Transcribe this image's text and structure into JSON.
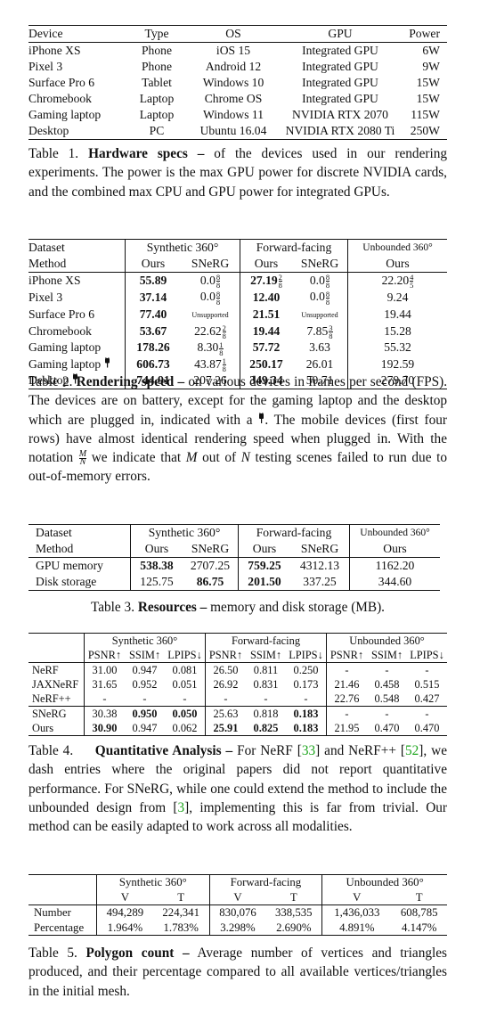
{
  "table1": {
    "headers": [
      "Device",
      "Type",
      "OS",
      "GPU",
      "Power"
    ],
    "rows": [
      [
        "iPhone XS",
        "Phone",
        "iOS 15",
        "Integrated GPU",
        "6W"
      ],
      [
        "Pixel 3",
        "Phone",
        "Android 12",
        "Integrated GPU",
        "9W"
      ],
      [
        "Surface Pro 6",
        "Tablet",
        "Windows 10",
        "Integrated GPU",
        "15W"
      ],
      [
        "Chromebook",
        "Laptop",
        "Chrome OS",
        "Integrated GPU",
        "15W"
      ],
      [
        "Gaming laptop",
        "Laptop",
        "Windows 11",
        "NVIDIA RTX 2070",
        "115W"
      ],
      [
        "Desktop",
        "PC",
        "Ubuntu 16.04",
        "NVIDIA RTX 2080 Ti",
        "250W"
      ]
    ],
    "caption_label": "Table 1.",
    "caption_title": "Hardware specs –",
    "caption_text": "of the devices used in our rendering experiments. The power is the max GPU power for discrete NVIDIA cards, and the combined max CPU and GPU power for integrated GPUs."
  },
  "table2": {
    "h_dataset": "Dataset",
    "h_method": "Method",
    "groups": [
      "Synthetic 360°",
      "Forward-facing",
      "Unbounded 360°"
    ],
    "methods": [
      "Ours",
      "SNeRG",
      "Ours",
      "SNeRG",
      "Ours"
    ],
    "rows": [
      {
        "device": "iPhone XS",
        "plug": "",
        "v": [
          "55.89",
          "0.0",
          "27.19",
          "0.0",
          "22.20"
        ],
        "f": [
          null,
          [
            "8",
            "8"
          ],
          [
            "2",
            "8"
          ],
          [
            "8",
            "8"
          ],
          [
            "4",
            "5"
          ]
        ]
      },
      {
        "device": "Pixel 3",
        "plug": "",
        "v": [
          "37.14",
          "0.0",
          "12.40",
          "0.0",
          "9.24"
        ],
        "f": [
          null,
          [
            "8",
            "8"
          ],
          null,
          [
            "8",
            "8"
          ],
          null
        ]
      },
      {
        "device": "Surface Pro 6",
        "plug": "",
        "v": [
          "77.40",
          "Unsupported",
          "21.51",
          "Unsupported",
          "19.44"
        ],
        "f": [
          null,
          null,
          null,
          null,
          null
        ]
      },
      {
        "device": "Chromebook",
        "plug": "",
        "v": [
          "53.67",
          "22.62",
          "19.44",
          "7.85",
          "15.28"
        ],
        "f": [
          null,
          [
            "2",
            "8"
          ],
          null,
          [
            "3",
            "8"
          ],
          null
        ]
      },
      {
        "device": "Gaming laptop",
        "plug": "",
        "v": [
          "178.26",
          "8.30",
          "57.72",
          "3.63",
          "55.32"
        ],
        "f": [
          null,
          [
            "1",
            "8"
          ],
          null,
          null,
          null
        ]
      },
      {
        "device": "Gaming laptop",
        "plug": "⚲",
        "v": [
          "606.73",
          "43.87",
          "250.17",
          "26.01",
          "192.59"
        ],
        "f": [
          null,
          [
            "1",
            "8"
          ],
          null,
          null,
          null
        ]
      },
      {
        "device": "Desktop",
        "plug": "⚲",
        "v": [
          "744.91",
          "207.26",
          "349.34",
          "50.71",
          "279.70"
        ],
        "f": [
          null,
          null,
          null,
          null,
          null
        ]
      }
    ],
    "caption_label": "Table 2.",
    "caption_title": "Rendering speed –",
    "caption_text_1": "on various devices in frames per second (FPS). The devices are on battery, except for the gaming laptop and the desktop which are plugged in, indicated with a",
    "caption_text_2": ". The mobile devices (first four rows) have almost identical rendering speed when plugged in. With the notation",
    "caption_text_3": "we indicate that",
    "caption_text_4": "out of",
    "caption_text_5": "testing scenes failed to run due to out-of-memory errors.",
    "M": "M",
    "N": "N"
  },
  "table3": {
    "h_dataset": "Dataset",
    "h_method": "Method",
    "groups": [
      "Synthetic 360°",
      "Forward-facing",
      "Unbounded 360°"
    ],
    "methods": [
      "Ours",
      "SNeRG",
      "Ours",
      "SNeRG",
      "Ours"
    ],
    "rows": [
      [
        "GPU memory",
        "538.38",
        "2707.25",
        "759.25",
        "4312.13",
        "1162.20"
      ],
      [
        "Disk storage",
        "125.75",
        "86.75",
        "201.50",
        "337.25",
        "344.60"
      ]
    ],
    "caption_label": "Table 3.",
    "caption_title": "Resources –",
    "caption_text": "memory and disk storage (MB)."
  },
  "table4": {
    "groups": [
      "Synthetic 360°",
      "Forward-facing",
      "Unbounded 360°"
    ],
    "metrics": [
      "PSNR↑",
      "SSIM↑",
      "LPIPS↓",
      "PSNR↑",
      "SSIM↑",
      "LPIPS↓",
      "PSNR↑",
      "SSIM↑",
      "LPIPS↓"
    ],
    "rows": [
      [
        "NeRF",
        "31.00",
        "0.947",
        "0.081",
        "26.50",
        "0.811",
        "0.250",
        "-",
        "-",
        "-"
      ],
      [
        "JAXNeRF",
        "31.65",
        "0.952",
        "0.051",
        "26.92",
        "0.831",
        "0.173",
        "21.46",
        "0.458",
        "0.515"
      ],
      [
        "NeRF++",
        "-",
        "-",
        "-",
        "-",
        "-",
        "-",
        "22.76",
        "0.548",
        "0.427"
      ],
      [
        "SNeRG",
        "30.38",
        "0.950",
        "0.050",
        "25.63",
        "0.818",
        "0.183",
        "-",
        "-",
        "-"
      ],
      [
        "Ours",
        "30.90",
        "0.947",
        "0.062",
        "25.91",
        "0.825",
        "0.183",
        "21.95",
        "0.470",
        "0.470"
      ]
    ],
    "caption_label": "Table 4.",
    "caption_title": "Quantitative Analysis –",
    "caption_text_1": "For NeRF [",
    "ref1": "33",
    "caption_text_2": "] and NeRF++ [",
    "ref2": "52",
    "caption_text_3": "], we dash entries where the original papers did not report quantitative performance. For SNeRG, while one could extend the method to include the unbounded design from [",
    "ref3": "3",
    "caption_text_4": "], implementing this is far from trivial. Our method can be easily adapted to work across all modalities."
  },
  "table5": {
    "groups": [
      "Synthetic 360°",
      "Forward-facing",
      "Unbounded 360°"
    ],
    "cols": [
      "V",
      "T",
      "V",
      "T",
      "V",
      "T"
    ],
    "rows": [
      [
        "Number",
        "494,289",
        "224,341",
        "830,076",
        "338,535",
        "1,436,033",
        "608,785"
      ],
      [
        "Percentage",
        "1.964%",
        "1.783%",
        "3.298%",
        "2.690%",
        "4.891%",
        "4.147%"
      ]
    ],
    "caption_label": "Table 5.",
    "caption_title": "Polygon count –",
    "caption_text": "Average number of vertices and triangles produced, and their percentage compared to all available vertices/triangles in the initial mesh."
  }
}
